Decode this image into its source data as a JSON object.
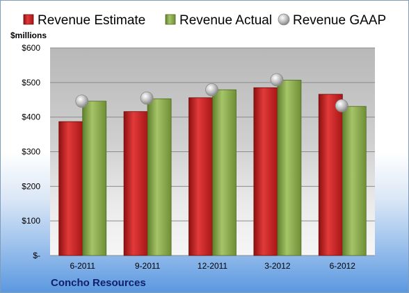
{
  "chart_data": {
    "type": "bar",
    "title": "",
    "company": "Concho Resources",
    "unit_label": "$millions",
    "categories": [
      "6-2011",
      "9-2011",
      "12-2011",
      "3-2012",
      "6-2012"
    ],
    "series": [
      {
        "name": "Revenue Estimate",
        "kind": "bar",
        "color": "#cc1f1f",
        "values": [
          387,
          416,
          456,
          485,
          466
        ]
      },
      {
        "name": "Revenue Actual",
        "kind": "bar",
        "color": "#8aab4a",
        "values": [
          446,
          453,
          479,
          507,
          431
        ]
      },
      {
        "name": "Revenue GAAP",
        "kind": "marker",
        "color": "#b8b8b8",
        "values": [
          446,
          455,
          479,
          508,
          433
        ]
      }
    ],
    "ylim": [
      0,
      600
    ],
    "yticks": [
      0,
      100,
      200,
      300,
      400,
      500,
      600
    ],
    "ytick_labels": [
      "$-",
      "$100",
      "$200",
      "$300",
      "$400",
      "$500",
      "$600"
    ],
    "grid": true,
    "legend_position": "top"
  }
}
